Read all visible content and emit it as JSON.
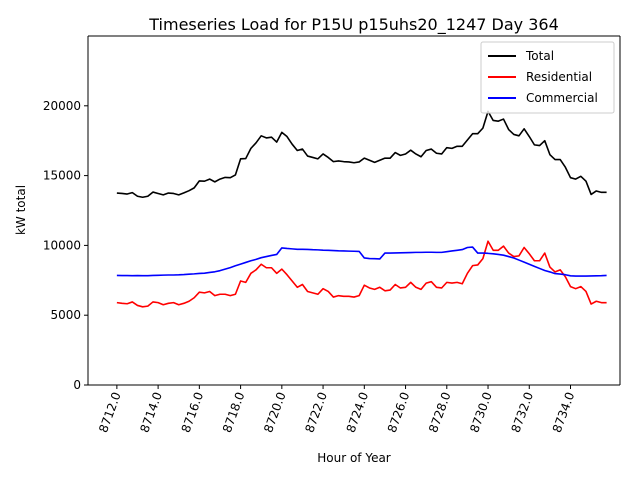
{
  "chart_data": {
    "type": "line",
    "title": "Timeseries Load for P15U p15uhs20_1247  Day 364",
    "xlabel": "Hour of Year",
    "ylabel": "kW total",
    "xlim": [
      8710.6,
      8736.4
    ],
    "ylim": [
      0,
      25000
    ],
    "x_ticks": [
      8712,
      8714,
      8716,
      8718,
      8720,
      8722,
      8724,
      8726,
      8728,
      8730,
      8732,
      8734
    ],
    "x_tick_labels": [
      "8712.0",
      "8714.0",
      "8716.0",
      "8718.0",
      "8720.0",
      "8722.0",
      "8724.0",
      "8726.0",
      "8728.0",
      "8730.0",
      "8732.0",
      "8734.0"
    ],
    "y_ticks": [
      0,
      5000,
      10000,
      15000,
      20000
    ],
    "y_tick_labels": [
      "0",
      "5000",
      "10000",
      "15000",
      "20000"
    ],
    "grid": false,
    "legend_position": "top-right",
    "x_start": 8712,
    "x_step": 0.25,
    "series": [
      {
        "name": "Total",
        "color": "#000000",
        "values": [
          13750,
          13720,
          13680,
          13780,
          13520,
          13450,
          13520,
          13820,
          13720,
          13620,
          13750,
          13720,
          13620,
          13760,
          13920,
          14120,
          14620,
          14600,
          14750,
          14550,
          14750,
          14870,
          14850,
          15050,
          16200,
          16220,
          16950,
          17350,
          17850,
          17700,
          17750,
          17400,
          18100,
          17800,
          17250,
          16800,
          16900,
          16400,
          16300,
          16200,
          16550,
          16300,
          16000,
          16050,
          16000,
          15980,
          15920,
          15980,
          16250,
          16100,
          15950,
          16100,
          16250,
          16250,
          16650,
          16450,
          16550,
          16820,
          16550,
          16350,
          16800,
          16900,
          16600,
          16550,
          17000,
          16950,
          17100,
          17100,
          17550,
          18000,
          18000,
          18400,
          19600,
          18950,
          18900,
          19050,
          18300,
          17950,
          17850,
          18350,
          17800,
          17200,
          17150,
          17500,
          16500,
          16150,
          16150,
          15600,
          14850,
          14750,
          14950,
          14600,
          13650,
          13900,
          13800,
          13800
        ]
      },
      {
        "name": "Residential",
        "color": "#ff0000",
        "values": [
          5900,
          5850,
          5820,
          5950,
          5700,
          5600,
          5650,
          5950,
          5900,
          5750,
          5850,
          5900,
          5750,
          5850,
          6000,
          6250,
          6650,
          6600,
          6700,
          6400,
          6500,
          6500,
          6400,
          6500,
          7450,
          7350,
          8000,
          8250,
          8650,
          8400,
          8400,
          8000,
          8300,
          7900,
          7450,
          7000,
          7200,
          6700,
          6600,
          6500,
          6900,
          6700,
          6300,
          6400,
          6350,
          6350,
          6300,
          6400,
          7150,
          6950,
          6850,
          7000,
          6750,
          6800,
          7200,
          6950,
          7000,
          7350,
          7000,
          6850,
          7300,
          7400,
          7000,
          6950,
          7350,
          7300,
          7350,
          7250,
          8000,
          8550,
          8600,
          9050,
          10300,
          9650,
          9650,
          9950,
          9450,
          9200,
          9250,
          9850,
          9400,
          8900,
          8900,
          9450,
          8450,
          8100,
          8250,
          7750,
          7050,
          6900,
          7050,
          6700,
          5800,
          6000,
          5900,
          5900
        ]
      },
      {
        "name": "Commercial",
        "color": "#0000ff",
        "values": [
          7850,
          7840,
          7840,
          7830,
          7840,
          7830,
          7830,
          7850,
          7860,
          7870,
          7880,
          7880,
          7890,
          7910,
          7940,
          7960,
          7990,
          8010,
          8060,
          8110,
          8190,
          8300,
          8410,
          8540,
          8660,
          8780,
          8900,
          9000,
          9120,
          9200,
          9280,
          9350,
          9820,
          9780,
          9750,
          9720,
          9720,
          9710,
          9690,
          9680,
          9660,
          9650,
          9630,
          9610,
          9600,
          9590,
          9580,
          9570,
          9100,
          9060,
          9050,
          9030,
          9450,
          9450,
          9460,
          9470,
          9480,
          9490,
          9500,
          9500,
          9510,
          9510,
          9500,
          9500,
          9550,
          9600,
          9650,
          9700,
          9850,
          9880,
          9450,
          9450,
          9430,
          9400,
          9350,
          9300,
          9200,
          9100,
          8950,
          8800,
          8650,
          8500,
          8350,
          8200,
          8100,
          7980,
          7950,
          7900,
          7820,
          7800,
          7800,
          7800,
          7810,
          7820,
          7830,
          7850
        ]
      }
    ]
  }
}
